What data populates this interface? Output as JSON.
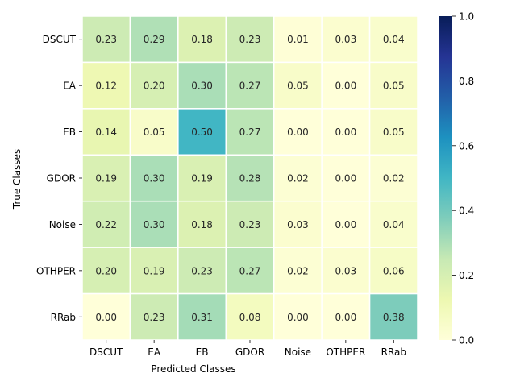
{
  "chart_data": {
    "type": "heatmap",
    "xlabel": "Predicted Classes",
    "ylabel": "True Classes",
    "x_categories": [
      "DSCUT",
      "EA",
      "EB",
      "GDOR",
      "Noise",
      "OTHPER",
      "RRab"
    ],
    "y_categories": [
      "DSCUT",
      "EA",
      "EB",
      "GDOR",
      "Noise",
      "OTHPER",
      "RRab"
    ],
    "values": [
      [
        0.23,
        0.29,
        0.18,
        0.23,
        0.01,
        0.03,
        0.04
      ],
      [
        0.12,
        0.2,
        0.3,
        0.27,
        0.05,
        0.0,
        0.05
      ],
      [
        0.14,
        0.05,
        0.5,
        0.27,
        0.0,
        0.0,
        0.05
      ],
      [
        0.19,
        0.3,
        0.19,
        0.28,
        0.02,
        0.0,
        0.02
      ],
      [
        0.22,
        0.3,
        0.18,
        0.23,
        0.03,
        0.0,
        0.04
      ],
      [
        0.2,
        0.19,
        0.23,
        0.27,
        0.02,
        0.03,
        0.06
      ],
      [
        0.0,
        0.23,
        0.31,
        0.08,
        0.0,
        0.0,
        0.38
      ]
    ],
    "value_format": "0.00",
    "colormap": "YlGnBu",
    "colorbar": {
      "range": [
        0,
        1
      ],
      "ticks": [
        "0.0",
        "0.2",
        "0.4",
        "0.6",
        "0.8",
        "1.0"
      ]
    },
    "cell_border_color": "#ffffff"
  }
}
